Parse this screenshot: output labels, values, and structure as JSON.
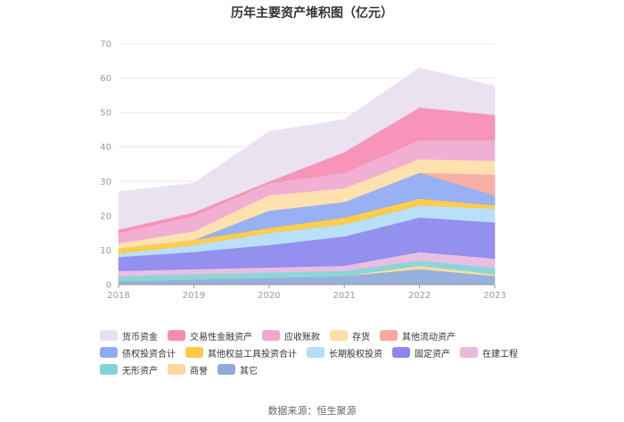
{
  "chart_data": {
    "type": "area",
    "stacked": true,
    "title": "历年主要资产堆积图（亿元）",
    "source": "数据来源：恒生聚源",
    "x": [
      "2018",
      "2019",
      "2020",
      "2021",
      "2022",
      "2023"
    ],
    "ylim": [
      0,
      70
    ],
    "yticks": [
      "0",
      "10",
      "20",
      "30",
      "40",
      "50",
      "60",
      "70"
    ],
    "legend_position": "bottom",
    "series": [
      {
        "name": "其它",
        "color": "#8fa9d9",
        "values": [
          1.0,
          1.5,
          2.0,
          2.5,
          4.5,
          2.5
        ]
      },
      {
        "name": "商誉",
        "color": "#fdd89a",
        "values": [
          0.0,
          0.0,
          0.0,
          0.0,
          1.0,
          0.5
        ]
      },
      {
        "name": "无形资产",
        "color": "#7fd5d5",
        "values": [
          1.5,
          1.5,
          1.5,
          1.5,
          1.5,
          1.8
        ]
      },
      {
        "name": "在建工程",
        "color": "#e8b8e0",
        "values": [
          1.5,
          1.5,
          1.5,
          1.5,
          2.5,
          2.8
        ]
      },
      {
        "name": "固定资产",
        "color": "#8b87ee",
        "values": [
          4.0,
          5.0,
          6.5,
          8.5,
          10.0,
          10.5
        ]
      },
      {
        "name": "长期股权投资",
        "color": "#b3dcf8",
        "values": [
          1.0,
          2.0,
          3.5,
          3.5,
          3.5,
          4.0
        ]
      },
      {
        "name": "其他权益工具投资合计",
        "color": "#fcc940",
        "values": [
          1.5,
          1.5,
          1.5,
          2.0,
          2.0,
          1.0
        ]
      },
      {
        "name": "债权投资合计",
        "color": "#8eaaf3",
        "values": [
          0.0,
          0.0,
          5.0,
          4.5,
          7.5,
          2.8
        ]
      },
      {
        "name": "其他流动资产",
        "color": "#f8a89e",
        "values": [
          0.0,
          0.0,
          0.0,
          0.0,
          0.0,
          6.1
        ]
      },
      {
        "name": "存货",
        "color": "#fde0a8",
        "values": [
          1.5,
          2.5,
          4.5,
          4.0,
          4.0,
          4.0
        ]
      },
      {
        "name": "应收账款",
        "color": "#f0a8d0",
        "values": [
          3.0,
          4.5,
          3.5,
          4.5,
          5.5,
          6.0
        ]
      },
      {
        "name": "交易性金融资产",
        "color": "#f78bb4",
        "values": [
          1.0,
          1.0,
          0.5,
          6.0,
          9.5,
          7.3
        ]
      },
      {
        "name": "货币资金",
        "color": "#e9dff0",
        "values": [
          11.0,
          8.5,
          14.5,
          9.5,
          11.5,
          8.4
        ]
      }
    ],
    "legend_order": [
      "货币资金",
      "交易性金融资产",
      "应收账款",
      "存货",
      "其他流动资产",
      "债权投资合计",
      "其他权益工具投资合计",
      "长期股权投资",
      "固定资产",
      "在建工程",
      "无形资产",
      "商誉",
      "其它"
    ]
  }
}
